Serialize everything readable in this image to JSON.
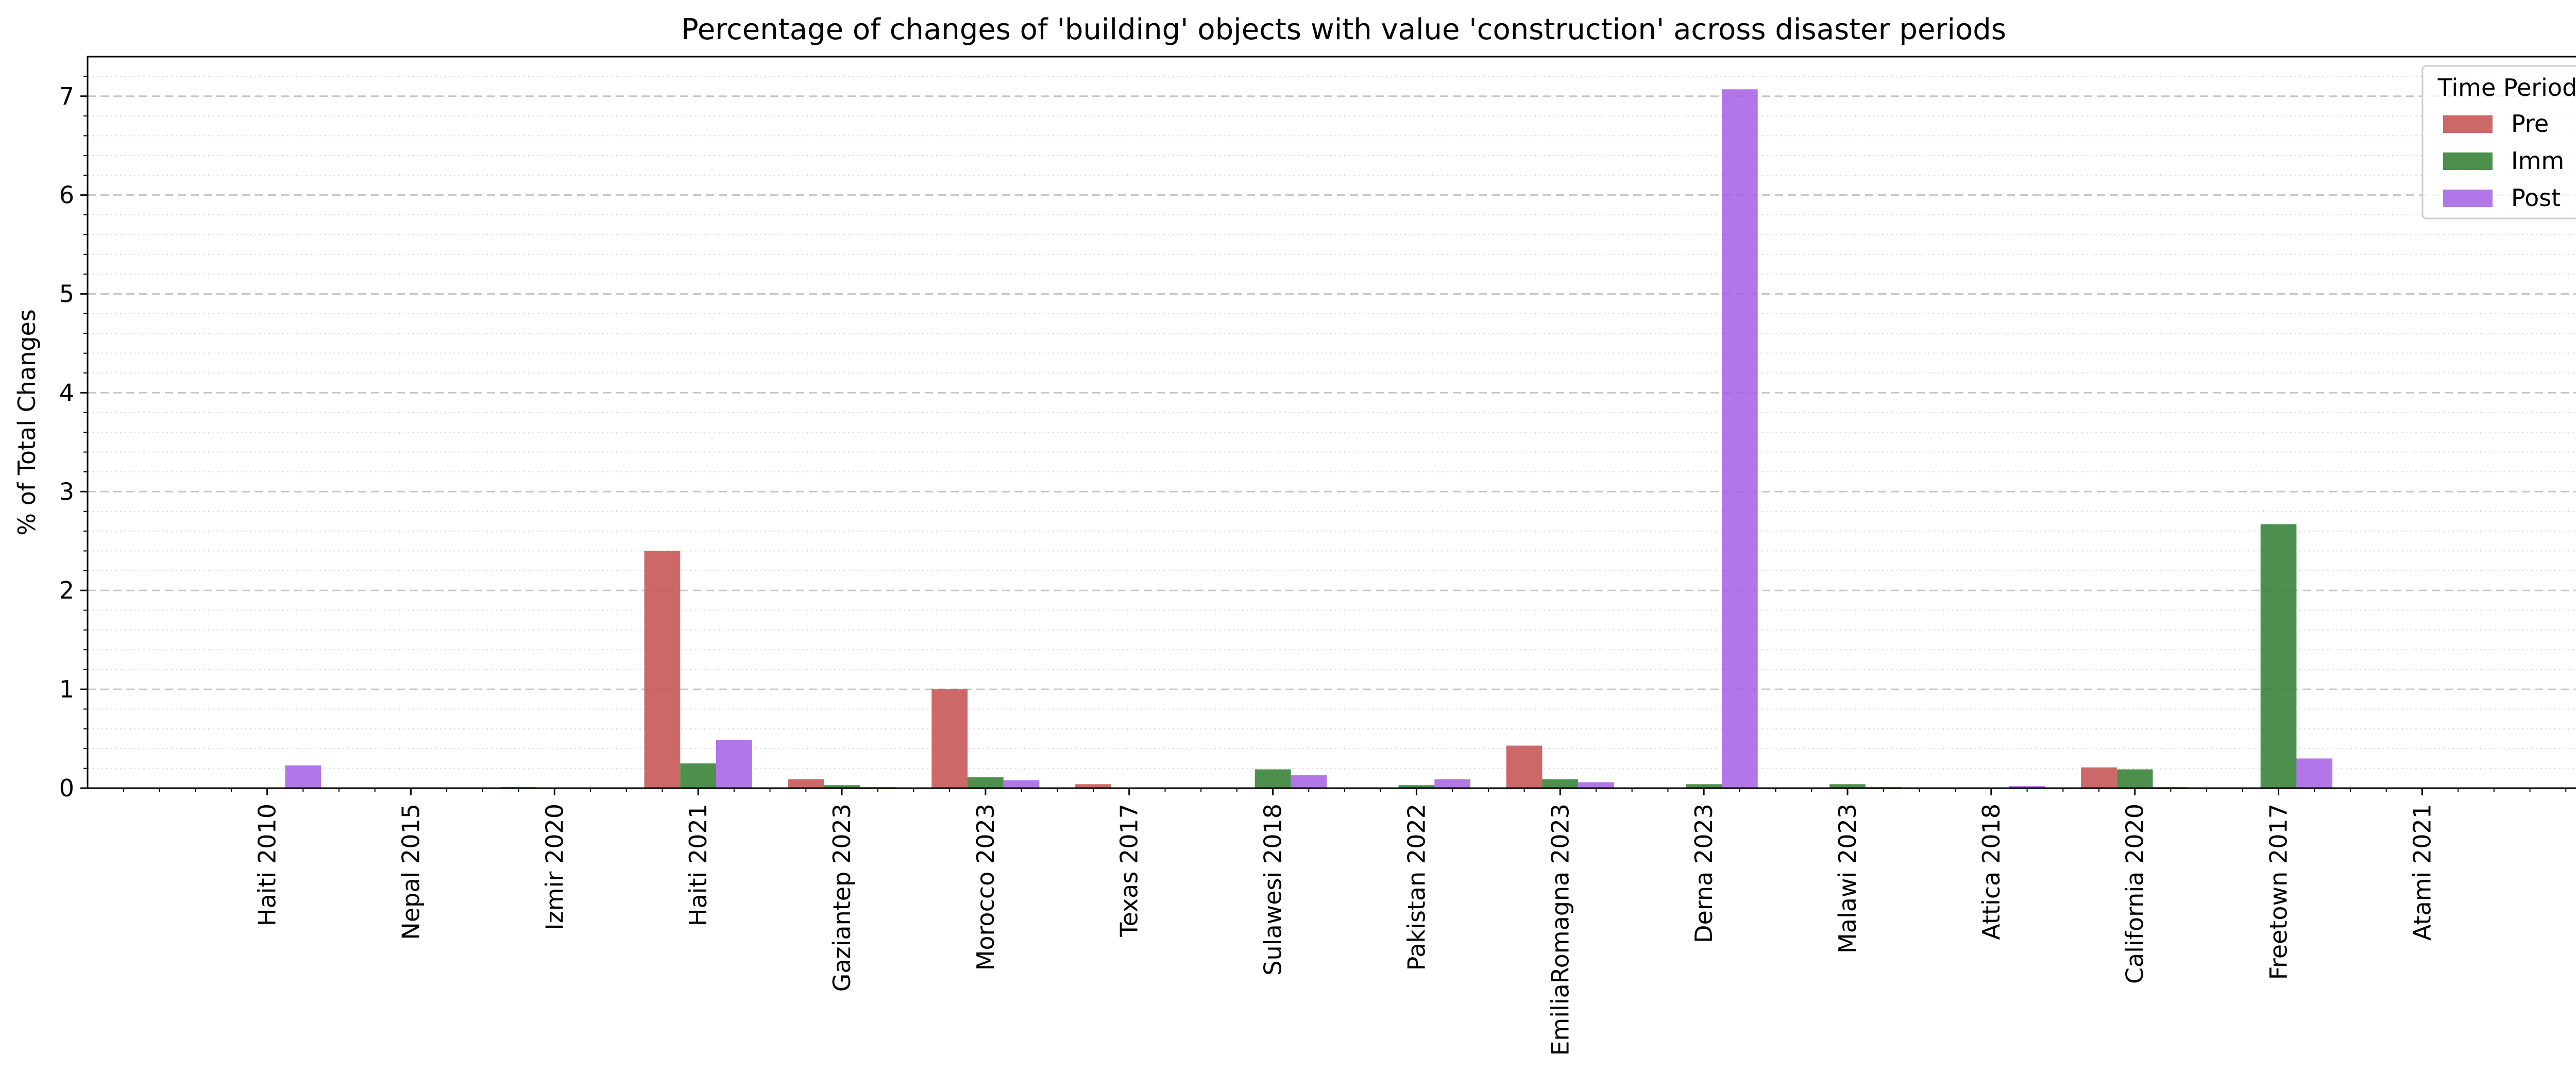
{
  "chart_data": {
    "type": "bar",
    "title": "Percentage of changes of 'building' objects with value 'construction' across disaster periods",
    "xlabel": "",
    "ylabel": "% of Total Changes",
    "ylim": [
      0,
      7.4
    ],
    "yticks": [
      0,
      1,
      2,
      3,
      4,
      5,
      6,
      7
    ],
    "grid": {
      "major": true,
      "minor": true,
      "major_style": "dashed",
      "minor_style": "dotted"
    },
    "legend": {
      "title": "Time Period",
      "placement": "top-right"
    },
    "categories": [
      "Haiti 2010",
      "Nepal 2015",
      "Izmir 2020",
      "Haiti 2021",
      "Gaziantep 2023",
      "Morocco 2023",
      "Texas 2017",
      "Sulawesi 2018",
      "Pakistan 2022",
      "EmiliaRomagna 2023",
      "Derna 2023",
      "Malawi 2023",
      "Attica 2018",
      "California 2020",
      "Freetown 2017",
      "Atami 2021"
    ],
    "series": [
      {
        "name": "Pre",
        "color": "#c44e4e",
        "values": [
          0,
          0.005,
          0.01,
          2.4,
          0.09,
          1.0,
          0.04,
          0,
          0,
          0.43,
          0,
          0,
          0,
          0.21,
          0,
          0
        ]
      },
      {
        "name": "Imm",
        "color": "#2e7d2e",
        "values": [
          0,
          0.005,
          0.005,
          0.25,
          0.03,
          0.11,
          0.005,
          0.19,
          0.03,
          0.09,
          0.04,
          0.04,
          0,
          0.19,
          2.67,
          0
        ]
      },
      {
        "name": "Post",
        "color": "#a45ee5",
        "values": [
          0.23,
          0.005,
          0.005,
          0.49,
          0.01,
          0.08,
          0,
          0.13,
          0.09,
          0.06,
          7.07,
          0.01,
          0.02,
          0.01,
          0.3,
          0
        ]
      }
    ]
  }
}
